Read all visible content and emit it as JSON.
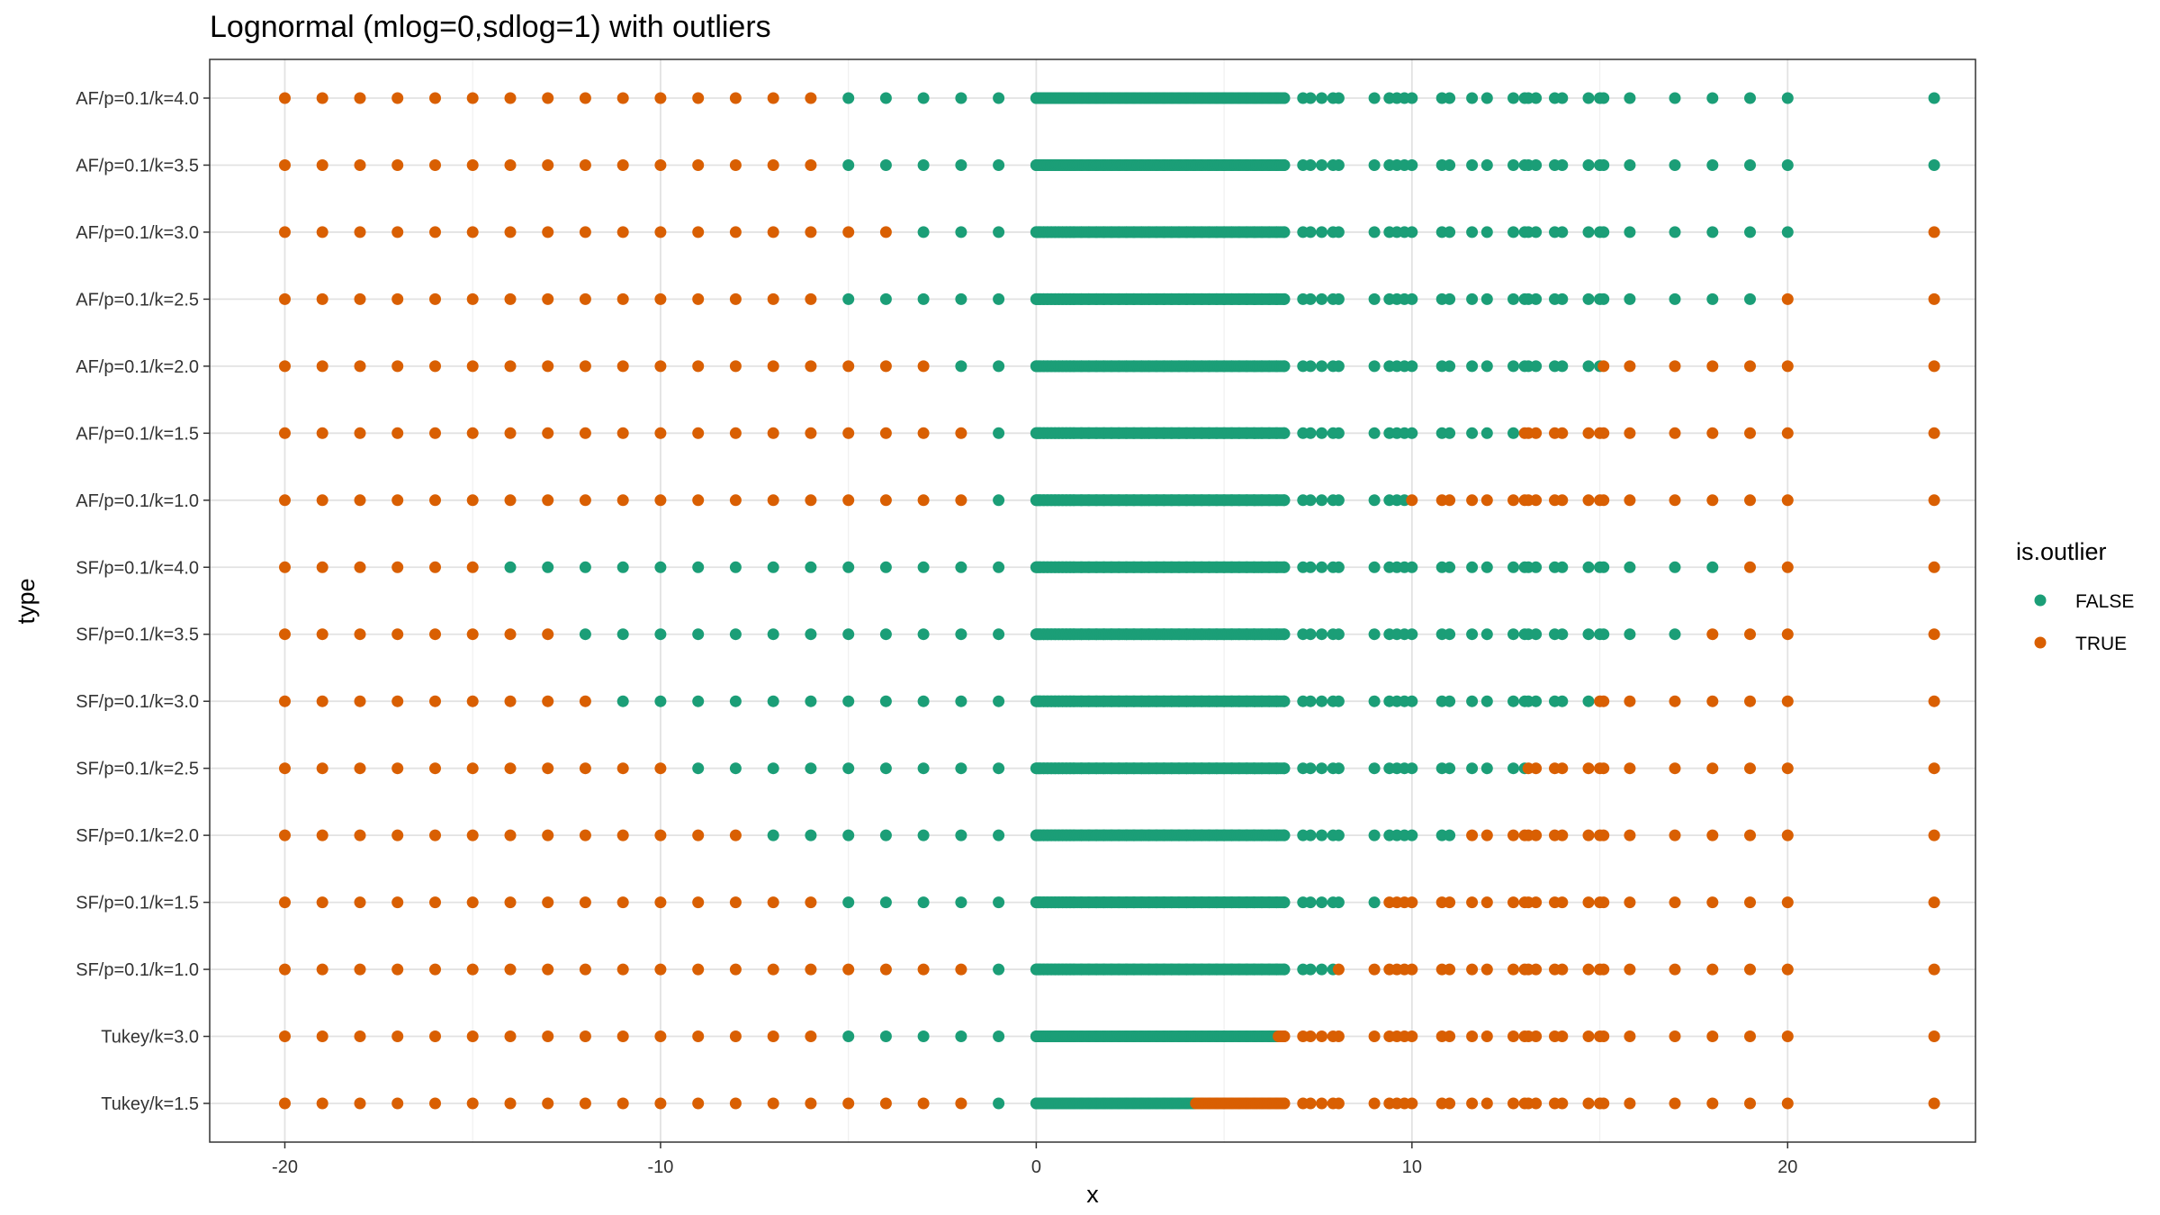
{
  "chart_data": {
    "type": "scatter",
    "title": "Lognormal (mlog=0,sdlog=1) with outliers",
    "xlabel": "x",
    "ylabel": "type",
    "xlim": [
      -22,
      25
    ],
    "x_ticks": [
      -20,
      -10,
      0,
      10,
      20
    ],
    "x_tick_labels": [
      "-20",
      "-10",
      "0",
      "10",
      "20"
    ],
    "grid": true,
    "legend": {
      "title": "is.outlier",
      "position": "right",
      "entries": [
        {
          "label": "FALSE",
          "color": "#1B9E77"
        },
        {
          "label": "TRUE",
          "color": "#D95F02"
        }
      ]
    },
    "categories": [
      "Tukey/k=1.5",
      "Tukey/k=3.0",
      "SF/p=0.1/k=1.0",
      "SF/p=0.1/k=1.5",
      "SF/p=0.1/k=2.0",
      "SF/p=0.1/k=2.5",
      "SF/p=0.1/k=3.0",
      "SF/p=0.1/k=3.5",
      "SF/p=0.1/k=4.0",
      "AF/p=0.1/k=1.0",
      "AF/p=0.1/k=1.5",
      "AF/p=0.1/k=2.0",
      "AF/p=0.1/k=2.5",
      "AF/p=0.1/k=3.0",
      "AF/p=0.1/k=3.5",
      "AF/p=0.1/k=4.0"
    ],
    "x_values": [
      -20,
      -19,
      -18,
      -17,
      -16,
      -15,
      -14,
      -13,
      -12,
      -11,
      -10,
      -9,
      -8,
      -7,
      -6,
      -5,
      -4,
      -3,
      -2,
      -1,
      0,
      0.05,
      0.1,
      0.2,
      0.3,
      0.4,
      0.5,
      0.6,
      0.7,
      0.8,
      0.9,
      1.0,
      1.2,
      1.4,
      1.6,
      1.8,
      2.0,
      2.2,
      2.4,
      2.6,
      2.8,
      3.0,
      3.2,
      3.4,
      3.6,
      3.8,
      4.0,
      4.2,
      4.4,
      4.6,
      4.8,
      5.0,
      5.2,
      5.4,
      5.6,
      5.8,
      6.0,
      6.2,
      6.4,
      6.6,
      7.1,
      7.3,
      7.6,
      7.9,
      8.05,
      9.0,
      9.4,
      9.6,
      9.8,
      10.0,
      10.8,
      11.0,
      11.6,
      12.0,
      12.7,
      13.0,
      13.1,
      13.3,
      13.8,
      14.0,
      14.7,
      15.0,
      15.1,
      15.8,
      17.0,
      18.0,
      19.0,
      20.0,
      23.9
    ],
    "outlier_rule": "each row is FALSE (non-outlier) inside the interval [low, high] and TRUE outside it",
    "series": [
      {
        "type": "Tukey/k=1.5",
        "non_outlier_range": [
          -1,
          4.2
        ]
      },
      {
        "type": "Tukey/k=3.0",
        "non_outlier_range": [
          -5,
          6.4
        ]
      },
      {
        "type": "SF/p=0.1/k=1.0",
        "non_outlier_range": [
          -1,
          7.9
        ]
      },
      {
        "type": "SF/p=0.1/k=1.5",
        "non_outlier_range": [
          -5,
          9.0
        ]
      },
      {
        "type": "SF/p=0.1/k=2.0",
        "non_outlier_range": [
          -7,
          11.0
        ]
      },
      {
        "type": "SF/p=0.1/k=2.5",
        "non_outlier_range": [
          -9,
          13.0
        ]
      },
      {
        "type": "SF/p=0.1/k=3.0",
        "non_outlier_range": [
          -11,
          14.7
        ]
      },
      {
        "type": "SF/p=0.1/k=3.5",
        "non_outlier_range": [
          -12,
          17.0
        ]
      },
      {
        "type": "SF/p=0.1/k=4.0",
        "non_outlier_range": [
          -14,
          18.0
        ]
      },
      {
        "type": "AF/p=0.1/k=1.0",
        "non_outlier_range": [
          -1,
          9.8
        ]
      },
      {
        "type": "AF/p=0.1/k=1.5",
        "non_outlier_range": [
          -1,
          12.7
        ]
      },
      {
        "type": "AF/p=0.1/k=2.0",
        "non_outlier_range": [
          -2,
          15.0
        ]
      },
      {
        "type": "AF/p=0.1/k=2.5",
        "non_outlier_range": [
          -5,
          19.0
        ]
      },
      {
        "type": "AF/p=0.1/k=3.0",
        "non_outlier_range": [
          -3,
          20.0
        ]
      },
      {
        "type": "AF/p=0.1/k=3.5",
        "non_outlier_range": [
          -5,
          24.0
        ]
      },
      {
        "type": "AF/p=0.1/k=4.0",
        "non_outlier_range": [
          -5,
          24.0
        ]
      }
    ]
  }
}
